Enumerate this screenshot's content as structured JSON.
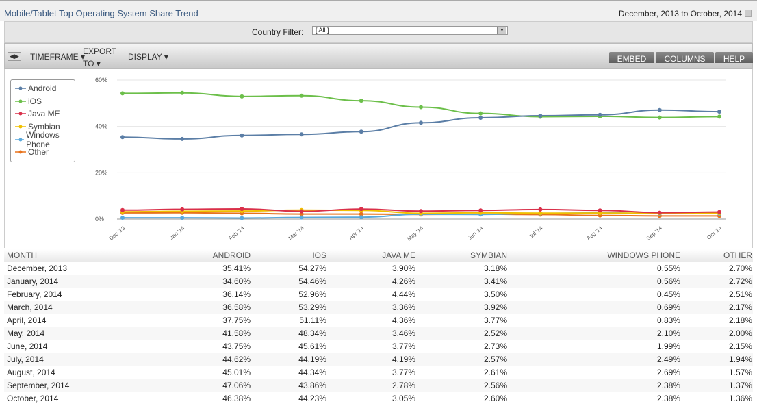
{
  "header": {
    "title": "Mobile/Tablet Top Operating System Share Trend",
    "date_range": "December, 2013 to October, 2014"
  },
  "filter": {
    "label": "Country Filter:",
    "value": "[ All ]"
  },
  "toolbar": {
    "timeframe": "TIMEFRAME",
    "export": "EXPORT TO",
    "display": "DISPLAY",
    "embed": "EMBED",
    "columns": "COLUMNS",
    "help": "HELP"
  },
  "chart_data": {
    "type": "line",
    "categories": [
      "Dec '13",
      "Jan '14",
      "Feb '14",
      "Mar '14",
      "Apr '14",
      "May '14",
      "Jun '14",
      "Jul '14",
      "Aug '14",
      "Sep '14",
      "Oct '14"
    ],
    "y_ticks": [
      "0%",
      "20%",
      "40%",
      "60%"
    ],
    "ylim": [
      0,
      60
    ],
    "legend_position": "top-left",
    "series": [
      {
        "name": "Android",
        "color": "#5b7ea6",
        "values": [
          35.41,
          34.6,
          36.14,
          36.58,
          37.75,
          41.58,
          43.75,
          44.62,
          45.01,
          47.06,
          46.38
        ]
      },
      {
        "name": "iOS",
        "color": "#6cbf4a",
        "values": [
          54.27,
          54.46,
          52.96,
          53.29,
          51.11,
          48.34,
          45.61,
          44.19,
          44.34,
          43.86,
          44.23
        ]
      },
      {
        "name": "Java ME",
        "color": "#d9304a",
        "values": [
          3.9,
          4.26,
          4.44,
          3.36,
          4.36,
          3.46,
          3.77,
          4.19,
          3.77,
          2.78,
          3.05
        ]
      },
      {
        "name": "Symbian",
        "color": "#f0c000",
        "values": [
          3.18,
          3.41,
          3.5,
          3.92,
          3.77,
          2.52,
          2.73,
          2.57,
          2.61,
          2.56,
          2.6
        ]
      },
      {
        "name": "Windows Phone",
        "color": "#5aa9dc",
        "values": [
          0.55,
          0.56,
          0.45,
          0.69,
          0.83,
          2.1,
          1.99,
          2.49,
          2.69,
          2.38,
          2.38
        ]
      },
      {
        "name": "Other",
        "color": "#e8731c",
        "values": [
          2.7,
          2.72,
          2.51,
          2.17,
          2.18,
          2.0,
          2.15,
          1.94,
          1.57,
          1.37,
          1.36
        ]
      }
    ]
  },
  "table": {
    "headers": [
      "MONTH",
      "ANDROID",
      "IOS",
      "JAVA ME",
      "SYMBIAN",
      "WINDOWS PHONE",
      "OTHER"
    ],
    "rows": [
      [
        "December, 2013",
        "35.41%",
        "54.27%",
        "3.90%",
        "3.18%",
        "0.55%",
        "2.70%"
      ],
      [
        "January, 2014",
        "34.60%",
        "54.46%",
        "4.26%",
        "3.41%",
        "0.56%",
        "2.72%"
      ],
      [
        "February, 2014",
        "36.14%",
        "52.96%",
        "4.44%",
        "3.50%",
        "0.45%",
        "2.51%"
      ],
      [
        "March, 2014",
        "36.58%",
        "53.29%",
        "3.36%",
        "3.92%",
        "0.69%",
        "2.17%"
      ],
      [
        "April, 2014",
        "37.75%",
        "51.11%",
        "4.36%",
        "3.77%",
        "0.83%",
        "2.18%"
      ],
      [
        "May, 2014",
        "41.58%",
        "48.34%",
        "3.46%",
        "2.52%",
        "2.10%",
        "2.00%"
      ],
      [
        "June, 2014",
        "43.75%",
        "45.61%",
        "3.77%",
        "2.73%",
        "1.99%",
        "2.15%"
      ],
      [
        "July, 2014",
        "44.62%",
        "44.19%",
        "4.19%",
        "2.57%",
        "2.49%",
        "1.94%"
      ],
      [
        "August, 2014",
        "45.01%",
        "44.34%",
        "3.77%",
        "2.61%",
        "2.69%",
        "1.57%"
      ],
      [
        "September, 2014",
        "47.06%",
        "43.86%",
        "2.78%",
        "2.56%",
        "2.38%",
        "1.37%"
      ],
      [
        "October, 2014",
        "46.38%",
        "44.23%",
        "3.05%",
        "2.60%",
        "2.38%",
        "1.36%"
      ]
    ]
  }
}
